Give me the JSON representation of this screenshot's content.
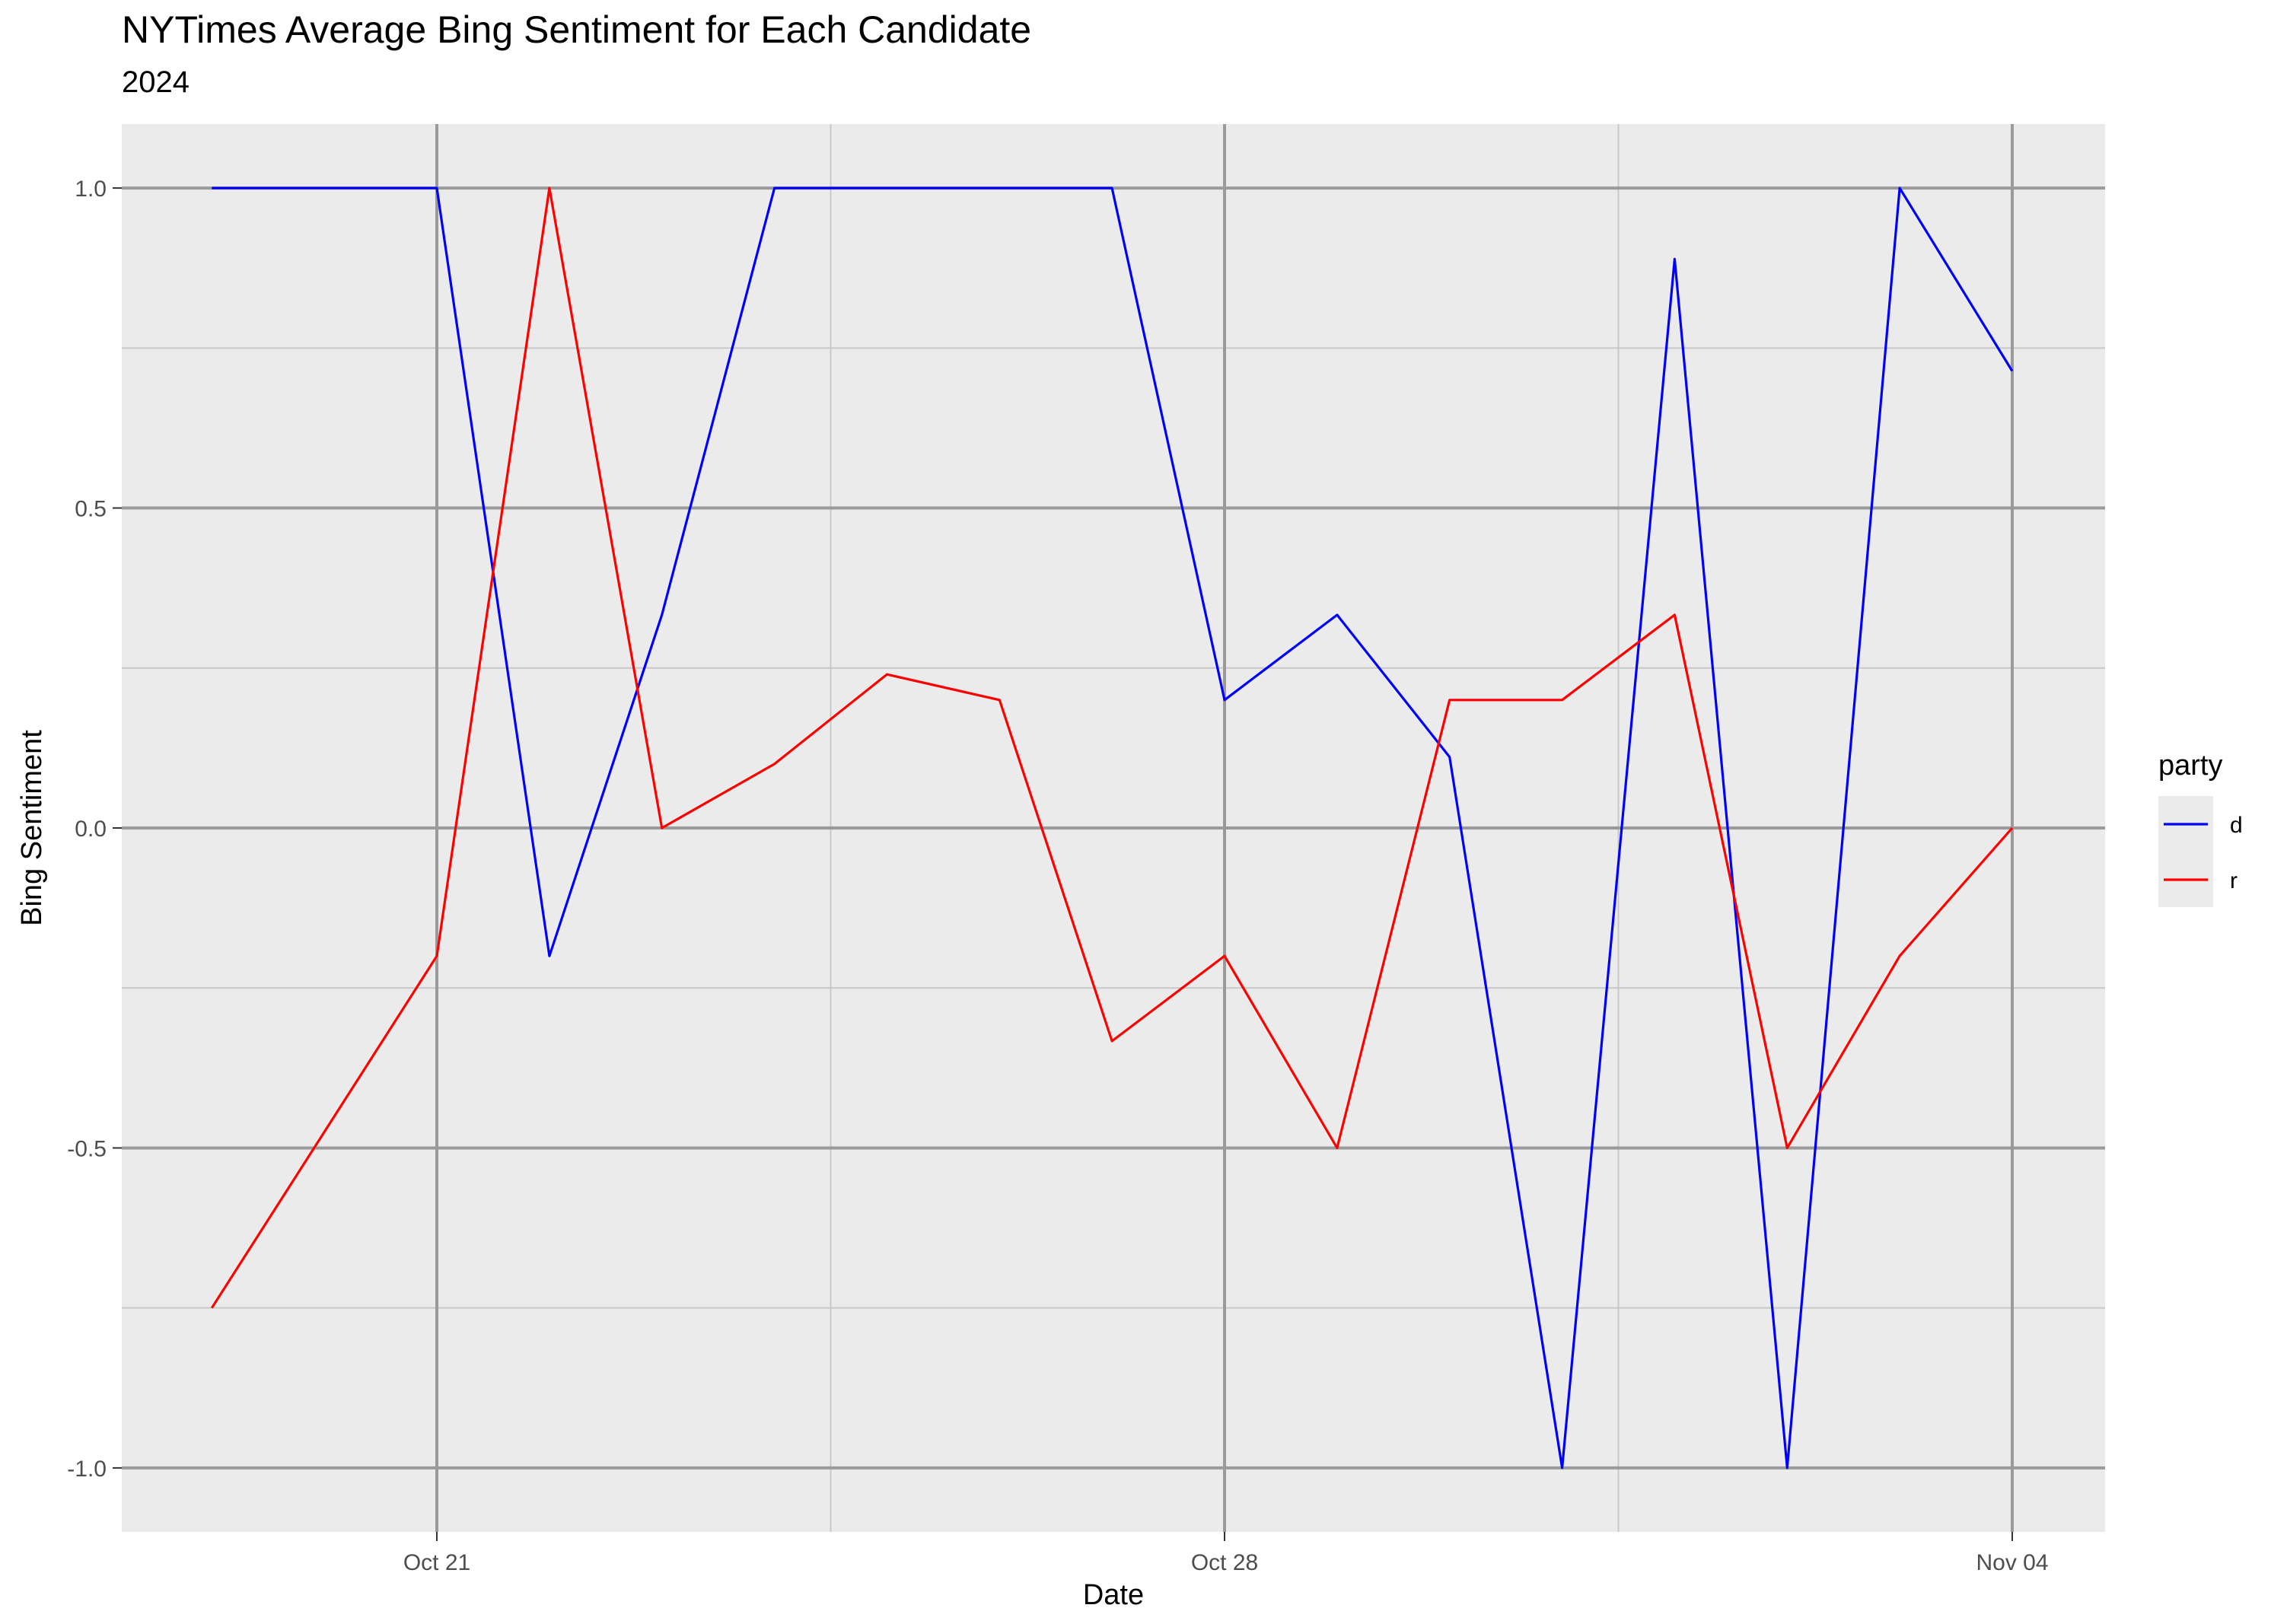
{
  "chart_data": {
    "type": "line",
    "title": "NYTimes Average Bing Sentiment for Each Candidate",
    "subtitle": "2024",
    "xlabel": "Date",
    "ylabel": "Bing Sentiment",
    "x_ticks": [
      "Oct 21",
      "Oct 28",
      "Nov 04"
    ],
    "y_ticks": [
      "-1.0",
      "-0.5",
      "0.0",
      "0.5",
      "1.0"
    ],
    "xlim": [
      "2024-10-18",
      "2024-11-04"
    ],
    "ylim": [
      -1.1,
      1.1
    ],
    "grid": true,
    "legend": {
      "title": "party",
      "position": "right"
    },
    "x": [
      "2024-10-19",
      "2024-10-21",
      "2024-10-22",
      "2024-10-23",
      "2024-10-24",
      "2024-10-25",
      "2024-10-26",
      "2024-10-27",
      "2024-10-28",
      "2024-10-29",
      "2024-10-30",
      "2024-10-31",
      "2024-11-01",
      "2024-11-02",
      "2024-11-03",
      "2024-11-04"
    ],
    "series": [
      {
        "name": "d",
        "color": "#0000ff",
        "values": [
          1.0,
          1.0,
          -0.2,
          0.333,
          1.0,
          1.0,
          1.0,
          1.0,
          0.2,
          0.333,
          0.111,
          -1.0,
          0.889,
          -1.0,
          1.0,
          0.714
        ]
      },
      {
        "name": "r",
        "color": "#ff0000",
        "values": [
          -0.75,
          -0.2,
          1.0,
          0.0,
          0.1,
          0.24,
          0.2,
          -0.333,
          -0.2,
          -0.5,
          0.2,
          0.2,
          0.333,
          -0.5,
          -0.2,
          0.0
        ]
      }
    ]
  }
}
